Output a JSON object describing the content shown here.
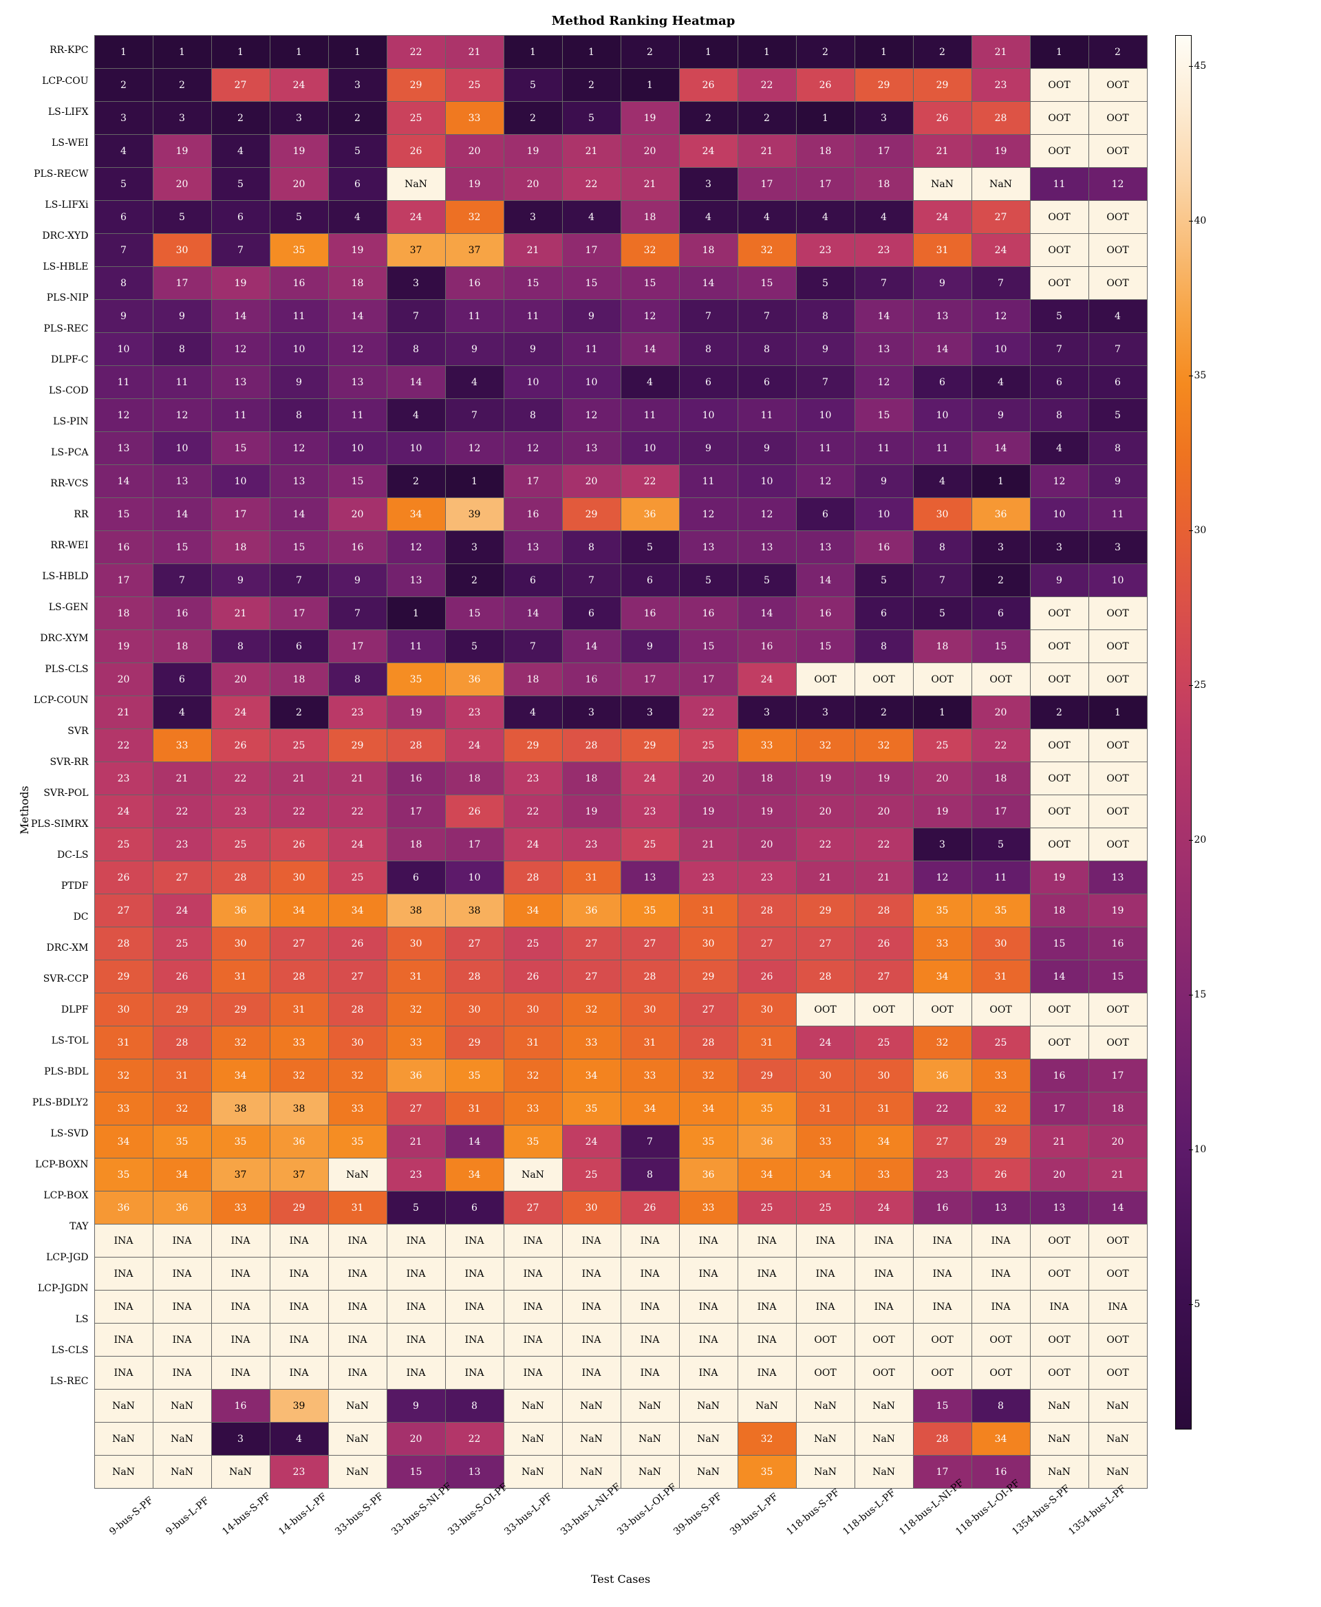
{
  "chart": {
    "type": "heatmap",
    "title": "Method Ranking Heatmap",
    "title_fontsize": 18,
    "xlabel": "Test Cases",
    "ylabel": "Methods",
    "label_fontsize": 16,
    "tick_fontsize": 14,
    "cell_fontsize": 14,
    "cell_border_color": "#666666",
    "background_color": "#ffffff",
    "special_cell_bg": "#fdf4e2",
    "special_cell_text": "#000000",
    "colormap": {
      "domain": [
        1,
        46
      ],
      "stops": [
        [
          0.0,
          "#2a0a3a"
        ],
        [
          0.1,
          "#3e0f51"
        ],
        [
          0.2,
          "#5d1a6a"
        ],
        [
          0.3,
          "#7e2470"
        ],
        [
          0.4,
          "#9e2f6e"
        ],
        [
          0.5,
          "#bd3a66"
        ],
        [
          0.55,
          "#d04657"
        ],
        [
          0.6,
          "#dd5345"
        ],
        [
          0.65,
          "#e86231"
        ],
        [
          0.7,
          "#ef7420"
        ],
        [
          0.75,
          "#f58a1f"
        ],
        [
          0.8,
          "#f7a445"
        ],
        [
          0.85,
          "#f9be7a"
        ],
        [
          0.9,
          "#fbd7ac"
        ],
        [
          0.95,
          "#fdecd4"
        ],
        [
          1.0,
          "#fefdf6"
        ]
      ]
    },
    "colorbar_ticks": [
      5,
      10,
      15,
      20,
      25,
      30,
      35,
      40,
      45
    ],
    "yticks": [
      "RR-KPC",
      "LCP-COU",
      "LS-LIFX",
      "LS-WEI",
      "PLS-RECW",
      "LS-LIFXi",
      "DRC-XYD",
      "LS-HBLE",
      "PLS-NIP",
      "PLS-REC",
      "DLPF-C",
      "LS-COD",
      "LS-PIN",
      "LS-PCA",
      "RR-VCS",
      "RR",
      "RR-WEI",
      "LS-HBLD",
      "LS-GEN",
      "DRC-XYM",
      "PLS-CLS",
      "LCP-COUN",
      "SVR",
      "SVR-RR",
      "SVR-POL",
      "PLS-SIMRX",
      "DC-LS",
      "PTDF",
      "DC",
      "DRC-XM",
      "SVR-CCP",
      "DLPF",
      "LS-TOL",
      "PLS-BDL",
      "PLS-BDLY2",
      "LS-SVD",
      "LCP-BOXN",
      "LCP-BOX",
      "TAY",
      "LCP-JGD",
      "LCP-JGDN",
      "LS",
      "LS-CLS",
      "LS-REC"
    ],
    "xticks": [
      "9-bus-S-PF",
      "9-bus-L-PF",
      "14-bus-S-PF",
      "14-bus-L-PF",
      "33-bus-S-PF",
      "33-bus-S-NI-PF",
      "33-bus-S-OI-PF",
      "33-bus-L-PF",
      "33-bus-L-NI-PF",
      "33-bus-L-OI-PF",
      "39-bus-S-PF",
      "39-bus-L-PF",
      "118-bus-S-PF",
      "118-bus-L-PF",
      "118-bus-L-NI-PF",
      "118-bus-L-OI-PF",
      "1354-bus-S-PF",
      "1354-bus-L-PF"
    ],
    "data": [
      [
        1,
        1,
        1,
        1,
        1,
        22,
        21,
        1,
        1,
        2,
        1,
        1,
        2,
        1,
        2,
        21,
        1,
        2
      ],
      [
        2,
        2,
        27,
        24,
        3,
        29,
        25,
        5,
        2,
        1,
        26,
        22,
        26,
        29,
        29,
        23,
        "OOT",
        "OOT"
      ],
      [
        3,
        3,
        2,
        3,
        2,
        25,
        33,
        2,
        5,
        19,
        2,
        2,
        1,
        3,
        26,
        28,
        "OOT",
        "OOT"
      ],
      [
        4,
        19,
        4,
        19,
        5,
        26,
        20,
        19,
        21,
        20,
        24,
        21,
        18,
        17,
        21,
        19,
        "OOT",
        "OOT"
      ],
      [
        5,
        20,
        5,
        20,
        6,
        "NaN",
        19,
        20,
        22,
        21,
        3,
        17,
        17,
        18,
        "NaN",
        "NaN",
        11,
        12
      ],
      [
        6,
        5,
        6,
        5,
        4,
        24,
        32,
        3,
        4,
        18,
        4,
        4,
        4,
        4,
        24,
        27,
        "OOT",
        "OOT"
      ],
      [
        7,
        30,
        7,
        35,
        19,
        37,
        37,
        21,
        17,
        32,
        18,
        32,
        23,
        23,
        31,
        24,
        "OOT",
        "OOT"
      ],
      [
        8,
        17,
        19,
        16,
        18,
        3,
        16,
        15,
        15,
        15,
        14,
        15,
        5,
        7,
        9,
        7,
        "OOT",
        "OOT"
      ],
      [
        9,
        9,
        14,
        11,
        14,
        7,
        11,
        11,
        9,
        12,
        7,
        7,
        8,
        14,
        13,
        12,
        5,
        4
      ],
      [
        10,
        8,
        12,
        10,
        12,
        8,
        9,
        9,
        11,
        14,
        8,
        8,
        9,
        13,
        14,
        10,
        7,
        7
      ],
      [
        11,
        11,
        13,
        9,
        13,
        14,
        4,
        10,
        10,
        4,
        6,
        6,
        7,
        12,
        6,
        4,
        6,
        6
      ],
      [
        12,
        12,
        11,
        8,
        11,
        4,
        7,
        8,
        12,
        11,
        10,
        11,
        10,
        15,
        10,
        9,
        8,
        5
      ],
      [
        13,
        10,
        15,
        12,
        10,
        10,
        12,
        12,
        13,
        10,
        9,
        9,
        11,
        11,
        11,
        14,
        4,
        8
      ],
      [
        14,
        13,
        10,
        13,
        15,
        2,
        1,
        17,
        20,
        22,
        11,
        10,
        12,
        9,
        4,
        1,
        12,
        9
      ],
      [
        15,
        14,
        17,
        14,
        20,
        34,
        39,
        16,
        29,
        36,
        12,
        12,
        6,
        10,
        30,
        36,
        10,
        11
      ],
      [
        16,
        15,
        18,
        15,
        16,
        12,
        3,
        13,
        8,
        5,
        13,
        13,
        13,
        16,
        8,
        3,
        3,
        3
      ],
      [
        17,
        7,
        9,
        7,
        9,
        13,
        2,
        6,
        7,
        6,
        5,
        5,
        14,
        5,
        7,
        2,
        9,
        10
      ],
      [
        18,
        16,
        21,
        17,
        7,
        1,
        15,
        14,
        6,
        16,
        16,
        14,
        16,
        6,
        5,
        6,
        "OOT",
        "OOT"
      ],
      [
        19,
        18,
        8,
        6,
        17,
        11,
        5,
        7,
        14,
        9,
        15,
        16,
        15,
        8,
        18,
        15,
        "OOT",
        "OOT"
      ],
      [
        20,
        6,
        20,
        18,
        8,
        35,
        36,
        18,
        16,
        17,
        17,
        24,
        "OOT",
        "OOT",
        "OOT",
        "OOT",
        "OOT",
        "OOT"
      ],
      [
        21,
        4,
        24,
        2,
        23,
        19,
        23,
        4,
        3,
        3,
        22,
        3,
        3,
        2,
        1,
        20,
        2,
        1
      ],
      [
        22,
        33,
        26,
        25,
        29,
        28,
        24,
        29,
        28,
        29,
        25,
        33,
        32,
        32,
        25,
        22,
        "OOT",
        "OOT"
      ],
      [
        23,
        21,
        22,
        21,
        21,
        16,
        18,
        23,
        18,
        24,
        20,
        18,
        19,
        19,
        20,
        18,
        "OOT",
        "OOT"
      ],
      [
        24,
        22,
        23,
        22,
        22,
        17,
        26,
        22,
        19,
        23,
        19,
        19,
        20,
        20,
        19,
        17,
        "OOT",
        "OOT"
      ],
      [
        25,
        23,
        25,
        26,
        24,
        18,
        17,
        24,
        23,
        25,
        21,
        20,
        22,
        22,
        3,
        5,
        "OOT",
        "OOT"
      ],
      [
        26,
        27,
        28,
        30,
        25,
        6,
        10,
        28,
        31,
        13,
        23,
        23,
        21,
        21,
        12,
        11,
        19,
        13
      ],
      [
        27,
        24,
        36,
        34,
        34,
        38,
        38,
        34,
        36,
        35,
        31,
        28,
        29,
        28,
        35,
        35,
        18,
        19
      ],
      [
        28,
        25,
        30,
        27,
        26,
        30,
        27,
        25,
        27,
        27,
        30,
        27,
        27,
        26,
        33,
        30,
        15,
        16
      ],
      [
        29,
        26,
        31,
        28,
        27,
        31,
        28,
        26,
        27,
        28,
        29,
        26,
        28,
        27,
        34,
        31,
        14,
        15
      ],
      [
        30,
        29,
        29,
        31,
        28,
        32,
        30,
        30,
        32,
        30,
        27,
        30,
        "OOT",
        "OOT",
        "OOT",
        "OOT",
        "OOT",
        "OOT"
      ],
      [
        31,
        28,
        32,
        33,
        30,
        33,
        29,
        31,
        33,
        31,
        28,
        31,
        24,
        25,
        32,
        25,
        "OOT",
        "OOT"
      ],
      [
        32,
        31,
        34,
        32,
        32,
        36,
        35,
        32,
        34,
        33,
        32,
        29,
        30,
        30,
        36,
        33,
        16,
        17
      ],
      [
        33,
        32,
        38,
        38,
        33,
        27,
        31,
        33,
        35,
        34,
        34,
        35,
        31,
        31,
        22,
        32,
        17,
        18
      ],
      [
        34,
        35,
        35,
        36,
        35,
        21,
        14,
        35,
        24,
        7,
        35,
        36,
        33,
        34,
        27,
        29,
        21,
        20
      ],
      [
        35,
        34,
        37,
        37,
        "NaN",
        23,
        34,
        "NaN",
        25,
        8,
        36,
        34,
        34,
        33,
        23,
        26,
        20,
        21
      ],
      [
        36,
        36,
        33,
        29,
        31,
        5,
        6,
        27,
        30,
        26,
        33,
        25,
        25,
        24,
        16,
        13,
        13,
        14
      ],
      [
        "INA",
        "INA",
        "INA",
        "INA",
        "INA",
        "INA",
        "INA",
        "INA",
        "INA",
        "INA",
        "INA",
        "INA",
        "INA",
        "INA",
        "INA",
        "INA",
        "OOT",
        "OOT"
      ],
      [
        "INA",
        "INA",
        "INA",
        "INA",
        "INA",
        "INA",
        "INA",
        "INA",
        "INA",
        "INA",
        "INA",
        "INA",
        "INA",
        "INA",
        "INA",
        "INA",
        "OOT",
        "OOT"
      ],
      [
        "INA",
        "INA",
        "INA",
        "INA",
        "INA",
        "INA",
        "INA",
        "INA",
        "INA",
        "INA",
        "INA",
        "INA",
        "INA",
        "INA",
        "INA",
        "INA",
        "INA",
        "INA"
      ],
      [
        "INA",
        "INA",
        "INA",
        "INA",
        "INA",
        "INA",
        "INA",
        "INA",
        "INA",
        "INA",
        "INA",
        "INA",
        "OOT",
        "OOT",
        "OOT",
        "OOT",
        "OOT",
        "OOT"
      ],
      [
        "INA",
        "INA",
        "INA",
        "INA",
        "INA",
        "INA",
        "INA",
        "INA",
        "INA",
        "INA",
        "INA",
        "INA",
        "OOT",
        "OOT",
        "OOT",
        "OOT",
        "OOT",
        "OOT"
      ],
      [
        "NaN",
        "NaN",
        16,
        39,
        "NaN",
        9,
        8,
        "NaN",
        "NaN",
        "NaN",
        "NaN",
        "NaN",
        "NaN",
        "NaN",
        15,
        8,
        "NaN",
        "NaN"
      ],
      [
        "NaN",
        "NaN",
        3,
        4,
        "NaN",
        20,
        22,
        "NaN",
        "NaN",
        "NaN",
        "NaN",
        32,
        "NaN",
        "NaN",
        28,
        34,
        "NaN",
        "NaN"
      ],
      [
        "NaN",
        "NaN",
        "NaN",
        23,
        "NaN",
        15,
        13,
        "NaN",
        "NaN",
        "NaN",
        "NaN",
        35,
        "NaN",
        "NaN",
        17,
        16,
        "NaN",
        "NaN"
      ]
    ]
  }
}
